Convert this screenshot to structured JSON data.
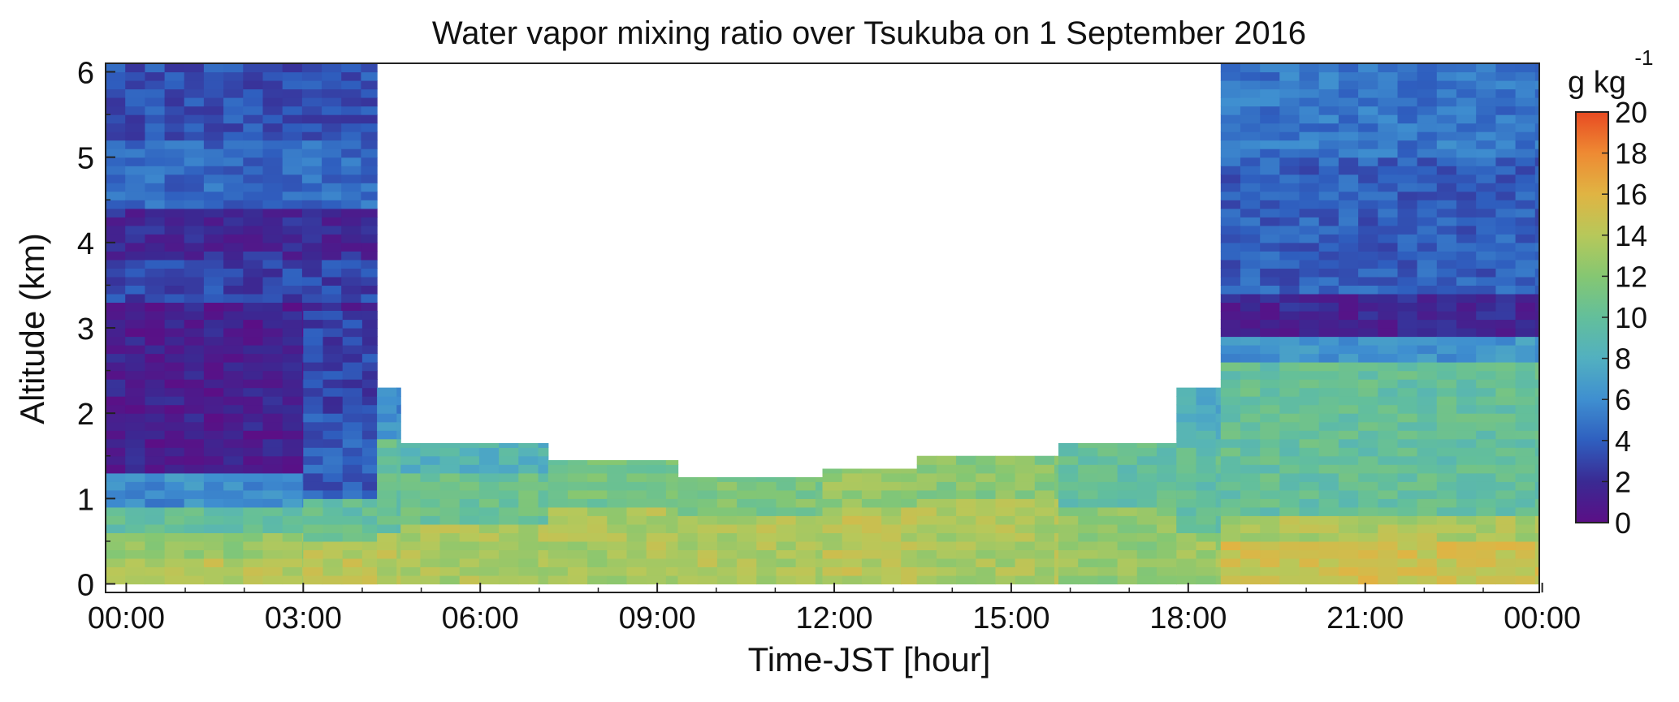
{
  "chart_data": {
    "type": "heatmap",
    "title": "Water vapor mixing ratio over Tsukuba on 1 September 2016",
    "xlabel": "Time-JST [hour]",
    "ylabel": "Altitude (km)",
    "x_tick_labels": [
      "00:00",
      "03:00",
      "06:00",
      "09:00",
      "12:00",
      "15:00",
      "18:00",
      "21:00",
      "00:00"
    ],
    "y_tick_labels": [
      "0",
      "1",
      "2",
      "3",
      "4",
      "5",
      "6"
    ],
    "xlim_hours": [
      -0.35,
      23.95
    ],
    "ylim_km": [
      -0.1,
      6.1
    ],
    "colorbar": {
      "label": "g kg",
      "label_superscript": "-1",
      "tick_labels": [
        "0",
        "2",
        "4",
        "6",
        "8",
        "10",
        "12",
        "14",
        "16",
        "18",
        "20"
      ],
      "range": [
        0,
        20
      ],
      "colormap": [
        "#5b0f86",
        "#3a2a93",
        "#2f5fbf",
        "#3f8fd0",
        "#52b0c0",
        "#63bf9b",
        "#85c772",
        "#b7c85a",
        "#e0b443",
        "#ee8a33",
        "#e84a22"
      ]
    },
    "time_bin_hours": 0.333,
    "altitude_bin_km": 0.1,
    "profiles": [
      {
        "t_start": -0.35,
        "t_end": 4.25,
        "top": 6.1,
        "values": [
          [
            0,
            0.3,
            14
          ],
          [
            0.3,
            0.6,
            12.5
          ],
          [
            0.6,
            0.9,
            10
          ],
          [
            0.9,
            1.3,
            6
          ],
          [
            1.3,
            3.3,
            1.2
          ],
          [
            3.3,
            3.8,
            3
          ],
          [
            3.8,
            4.4,
            1.8
          ],
          [
            4.4,
            5.2,
            4.5
          ],
          [
            5.2,
            6.1,
            3.5
          ]
        ]
      },
      {
        "t_start": 3.0,
        "t_end": 4.25,
        "top": 3.2,
        "values": [
          [
            0,
            0.5,
            14
          ],
          [
            0.5,
            1.0,
            10
          ],
          [
            1.0,
            2.0,
            4
          ],
          [
            2.0,
            3.2,
            3
          ]
        ]
      },
      {
        "t_start": 4.25,
        "t_end": 4.65,
        "top": 2.3,
        "values": [
          [
            0,
            0.6,
            14
          ],
          [
            0.6,
            1.7,
            10
          ],
          [
            1.7,
            2.3,
            6
          ]
        ]
      },
      {
        "t_start": 4.65,
        "t_end": 7.15,
        "top": 1.65,
        "values": [
          [
            0,
            0.7,
            13.5
          ],
          [
            0.7,
            1.3,
            10.5
          ],
          [
            1.3,
            1.65,
            8.5
          ]
        ]
      },
      {
        "t_start": 7.15,
        "t_end": 9.35,
        "top": 1.45,
        "values": [
          [
            0,
            0.9,
            13.5
          ],
          [
            0.9,
            1.45,
            11
          ]
        ]
      },
      {
        "t_start": 9.35,
        "t_end": 11.8,
        "top": 1.25,
        "values": [
          [
            0,
            0.8,
            13.5
          ],
          [
            0.8,
            1.25,
            11.5
          ]
        ]
      },
      {
        "t_start": 11.8,
        "t_end": 13.4,
        "top": 1.35,
        "values": [
          [
            0,
            0.9,
            14
          ],
          [
            0.9,
            1.35,
            12.5
          ]
        ]
      },
      {
        "t_start": 13.4,
        "t_end": 15.8,
        "top": 1.5,
        "values": [
          [
            0,
            1.0,
            13.5
          ],
          [
            1.0,
            1.5,
            12
          ]
        ]
      },
      {
        "t_start": 15.8,
        "t_end": 17.8,
        "top": 1.65,
        "values": [
          [
            0,
            0.9,
            12.5
          ],
          [
            0.9,
            1.65,
            10
          ]
        ]
      },
      {
        "t_start": 17.8,
        "t_end": 18.55,
        "top": 2.3,
        "values": [
          [
            0,
            0.6,
            13
          ],
          [
            0.6,
            1.6,
            10
          ],
          [
            1.6,
            2.3,
            8
          ]
        ]
      },
      {
        "t_start": 18.55,
        "t_end": 23.95,
        "top": 6.1,
        "values": [
          [
            0,
            0.5,
            15
          ],
          [
            0.5,
            0.8,
            13.5
          ],
          [
            0.8,
            2.6,
            10
          ],
          [
            2.6,
            2.9,
            6.5
          ],
          [
            2.9,
            3.4,
            1.5
          ],
          [
            3.4,
            5.0,
            4
          ],
          [
            5.0,
            6.1,
            5
          ]
        ]
      }
    ]
  }
}
